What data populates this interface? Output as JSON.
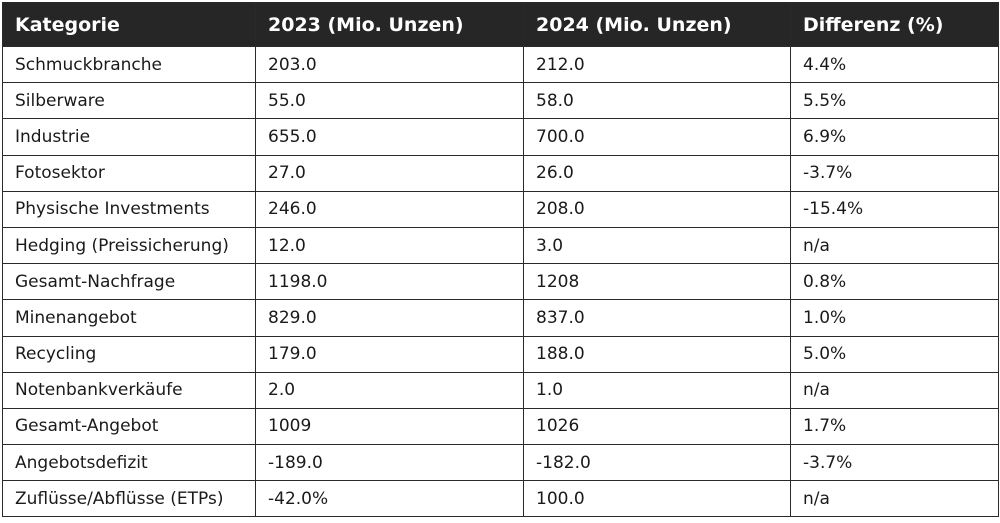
{
  "table": {
    "headers": [
      "Kategorie",
      "2023 (Mio. Unzen)",
      "2024 (Mio. Unzen)",
      "Differenz (%)"
    ],
    "rows": [
      [
        "Schmuckbranche",
        "203.0",
        "212.0",
        "4.4%"
      ],
      [
        "Silberware",
        "55.0",
        "58.0",
        "5.5%"
      ],
      [
        "Industrie",
        "655.0",
        "700.0",
        "6.9%"
      ],
      [
        "Fotosektor",
        "27.0",
        "26.0",
        "-3.7%"
      ],
      [
        "Physische Investments",
        "246.0",
        "208.0",
        "-15.4%"
      ],
      [
        "Hedging (Preissicherung)",
        "12.0",
        "3.0",
        "n/a"
      ],
      [
        "Gesamt-Nachfrage",
        "1198.0",
        "1208",
        "0.8%"
      ],
      [
        "Minenangebot",
        "829.0",
        "837.0",
        "1.0%"
      ],
      [
        "Recycling",
        "179.0",
        "188.0",
        "5.0%"
      ],
      [
        "Notenbankverkäufe",
        "2.0",
        "1.0",
        "n/a"
      ],
      [
        "Gesamt-Angebot",
        "1009",
        "1026",
        "1.7%"
      ],
      [
        "Angebotsdefizit",
        "-189.0",
        "-182.0",
        "-3.7%"
      ],
      [
        "Zuflüsse/Abflüsse (ETPs)",
        "-42.0%",
        "100.0",
        "n/a"
      ]
    ]
  }
}
